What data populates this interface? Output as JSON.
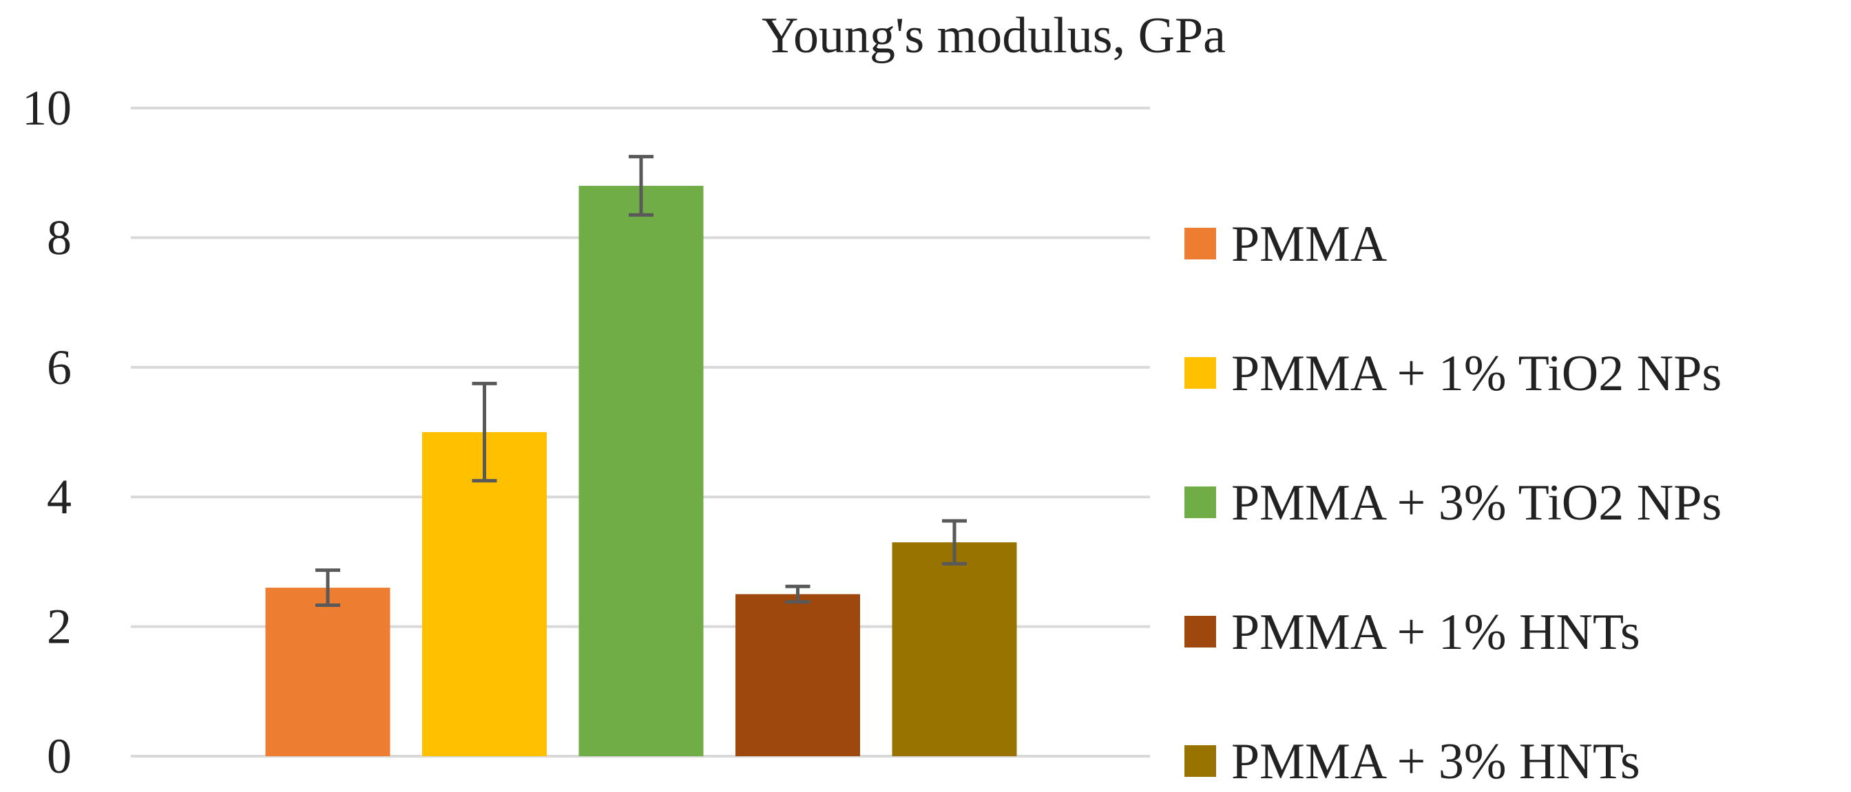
{
  "chart_data": {
    "type": "bar",
    "title": "Young's modulus, GPa",
    "xlabel": "",
    "ylabel": "",
    "ylim": [
      0,
      10
    ],
    "yticks": [
      0,
      2,
      4,
      6,
      8,
      10
    ],
    "grid": true,
    "legend_position": "right",
    "series": [
      {
        "name": "PMMA",
        "value": 2.6,
        "error": 0.27,
        "color": "#ED7D31"
      },
      {
        "name": "PMMA + 1% TiO2 NPs",
        "value": 5.0,
        "error": 0.75,
        "color": "#FFC000"
      },
      {
        "name": "PMMA + 3% TiO2 NPs",
        "value": 8.8,
        "error": 0.45,
        "color": "#70AD47"
      },
      {
        "name": "PMMA + 1% HNTs",
        "value": 2.5,
        "error": 0.12,
        "color": "#9E480E"
      },
      {
        "name": "PMMA + 3% HNTs",
        "value": 3.3,
        "error": 0.33,
        "color": "#997300"
      }
    ],
    "grid_color": "#D9D9D9",
    "error_bar_color": "#595959"
  }
}
